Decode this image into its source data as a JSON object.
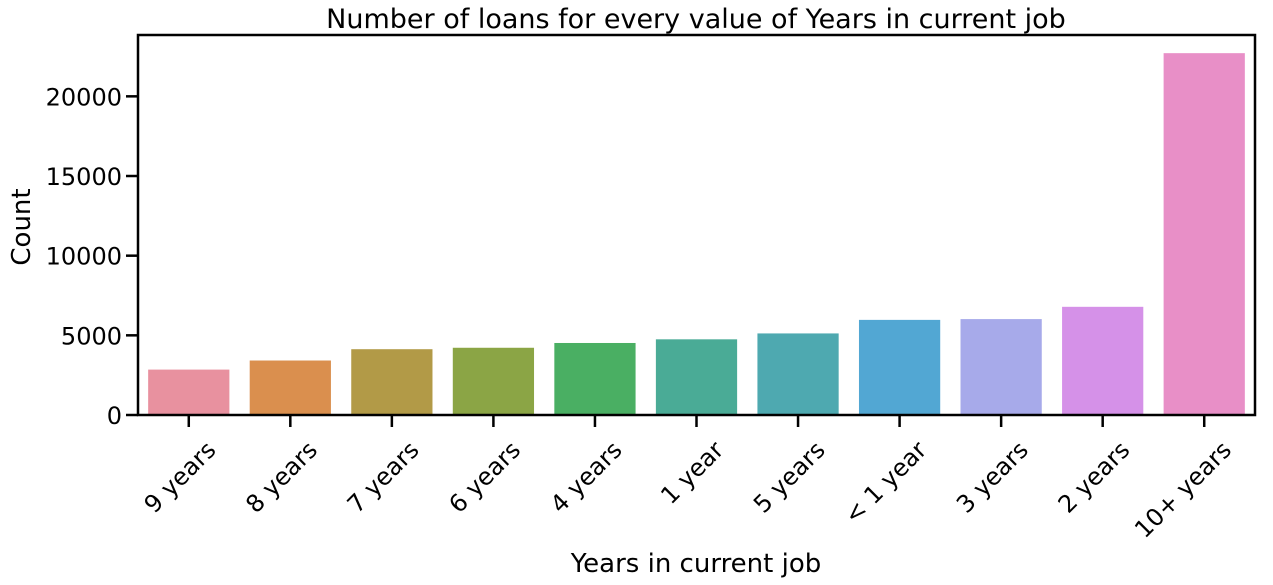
{
  "chart_data": {
    "type": "bar",
    "title": "Number of loans for every value of Years in current job",
    "xlabel": "Years in current job",
    "ylabel": "Count",
    "categories": [
      "9 years",
      "8 years",
      "7 years",
      "6 years",
      "4 years",
      "1 year",
      "5 years",
      "< 1 year",
      "3 years",
      "2 years",
      "10+ years"
    ],
    "values": [
      2850,
      3420,
      4130,
      4220,
      4520,
      4750,
      5120,
      5970,
      6020,
      6790,
      22710
    ],
    "colors": [
      "#e8919f",
      "#da8f4e",
      "#b29a47",
      "#8ba545",
      "#4aaf63",
      "#4aab96",
      "#4ea9b0",
      "#52a7d3",
      "#a7aaea",
      "#d591e8",
      "#e88fc7"
    ],
    "yticks": [
      0,
      5000,
      10000,
      15000,
      20000
    ],
    "ylim": [
      0,
      23850
    ],
    "grid": false,
    "legend": "none"
  }
}
